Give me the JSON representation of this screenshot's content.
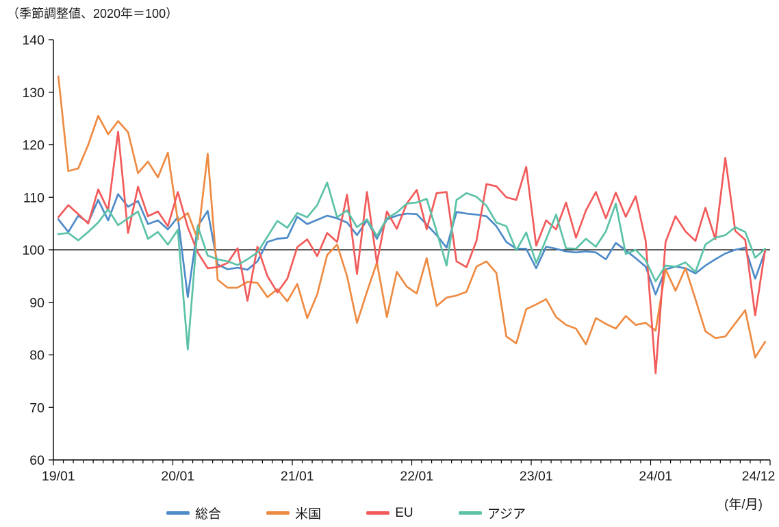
{
  "title_note": "（季節調整値、2020年＝100）",
  "axis_unit_label": "(年/月)",
  "chart_data": {
    "type": "line",
    "title": "（季節調整値、2020年＝100）",
    "xlabel": "(年/月)",
    "ylabel": "",
    "ylim": [
      60,
      140
    ],
    "y_ticks": [
      60,
      70,
      80,
      90,
      100,
      110,
      120,
      130,
      140
    ],
    "reference_line": 100,
    "grid": "off",
    "legend_position": "bottom",
    "x_start": "2019/01",
    "x_end": "2024/12",
    "months_total": 72,
    "x_tick_labels": [
      {
        "index": 0,
        "label": "19/01"
      },
      {
        "index": 12,
        "label": "20/01"
      },
      {
        "index": 24,
        "label": "21/01"
      },
      {
        "index": 36,
        "label": "22/01"
      },
      {
        "index": 48,
        "label": "23/01"
      },
      {
        "index": 60,
        "label": "24/01"
      },
      {
        "index": 71,
        "label": "24/12"
      }
    ],
    "series": [
      {
        "name": "総合",
        "color": "#4E8BC8",
        "values": [
          105.8,
          103.4,
          106.5,
          105.2,
          109.5,
          105.6,
          110.6,
          108.2,
          109.3,
          104.9,
          105.6,
          103.9,
          106.2,
          91.0,
          104.5,
          107.4,
          97.2,
          96.3,
          96.6,
          96.2,
          97.8,
          101.5,
          102.1,
          102.3,
          106.3,
          104.9,
          105.7,
          106.5,
          106.0,
          105.2,
          102.8,
          105.6,
          102.1,
          105.8,
          106.5,
          106.9,
          106.8,
          104.8,
          102.8,
          100.4,
          107.2,
          106.9,
          106.7,
          106.4,
          104.5,
          101.5,
          100.2,
          100.2,
          96.5,
          100.6,
          100.2,
          99.7,
          99.5,
          99.7,
          99.5,
          98.2,
          101.3,
          99.9,
          98.4,
          96.8,
          91.5,
          96.3,
          96.8,
          96.5,
          95.5,
          97.0,
          98.2,
          99.3,
          100.0,
          100.4,
          94.5,
          99.7
        ]
      },
      {
        "name": "米国",
        "color": "#EE8B43",
        "values": [
          133.0,
          115.0,
          115.5,
          120.0,
          125.5,
          122.0,
          124.5,
          122.4,
          114.6,
          116.8,
          113.8,
          118.5,
          105.5,
          107.0,
          102.0,
          118.3,
          94.3,
          92.8,
          92.8,
          93.9,
          93.7,
          91.0,
          92.5,
          90.2,
          93.5,
          87.0,
          91.5,
          99.0,
          101.0,
          95.0,
          86.1,
          92.0,
          97.6,
          87.2,
          95.8,
          93.0,
          91.7,
          98.4,
          89.3,
          90.9,
          91.3,
          92.0,
          96.8,
          97.8,
          95.6,
          83.5,
          82.2,
          88.7,
          89.6,
          90.6,
          87.2,
          85.7,
          85.0,
          82.0,
          87.0,
          85.9,
          85.0,
          87.4,
          85.7,
          86.1,
          84.6,
          96.3,
          92.2,
          96.5,
          90.6,
          84.5,
          83.2,
          83.5,
          86.0,
          88.5,
          79.5,
          82.5
        ]
      },
      {
        "name": "EU",
        "color": "#F25B5B",
        "values": [
          106.2,
          108.5,
          106.8,
          105.0,
          111.5,
          107.5,
          122.5,
          103.2,
          112.0,
          106.4,
          107.3,
          104.5,
          111.0,
          104.3,
          99.5,
          96.5,
          96.7,
          97.5,
          100.3,
          90.3,
          100.6,
          95.0,
          91.9,
          94.5,
          100.5,
          102.0,
          98.8,
          103.2,
          101.5,
          110.5,
          95.4,
          111.0,
          97.5,
          107.3,
          104.0,
          108.8,
          111.4,
          103.9,
          110.8,
          111.0,
          97.8,
          96.7,
          101.7,
          112.5,
          112.1,
          110.0,
          109.5,
          115.8,
          100.8,
          105.6,
          103.9,
          109.0,
          102.3,
          107.5,
          111.0,
          106.0,
          110.9,
          106.3,
          110.2,
          101.7,
          76.5,
          101.5,
          106.4,
          103.5,
          101.7,
          108.0,
          102.0,
          117.5,
          103.6,
          101.9,
          87.5,
          100.0
        ]
      },
      {
        "name": "アジア",
        "color": "#5BC2A7",
        "values": [
          103.0,
          103.2,
          101.8,
          103.4,
          105.2,
          107.7,
          104.7,
          106.0,
          107.3,
          102.1,
          103.4,
          101.0,
          103.8,
          81.0,
          104.5,
          98.9,
          98.2,
          97.8,
          97.1,
          98.2,
          99.5,
          102.5,
          105.5,
          104.2,
          107.0,
          106.2,
          108.5,
          112.8,
          106.2,
          107.5,
          104.3,
          105.8,
          102.6,
          106.0,
          107.1,
          108.8,
          109.0,
          109.7,
          103.5,
          97.0,
          109.5,
          110.8,
          110.1,
          108.4,
          105.2,
          104.5,
          99.9,
          103.3,
          97.5,
          102.0,
          106.7,
          100.3,
          100.2,
          102.1,
          100.6,
          103.5,
          108.8,
          99.2,
          100.0,
          98.0,
          94.0,
          97.0,
          96.8,
          97.6,
          95.8,
          101.0,
          102.3,
          102.8,
          104.3,
          103.4,
          98.5,
          100.2
        ]
      }
    ]
  }
}
